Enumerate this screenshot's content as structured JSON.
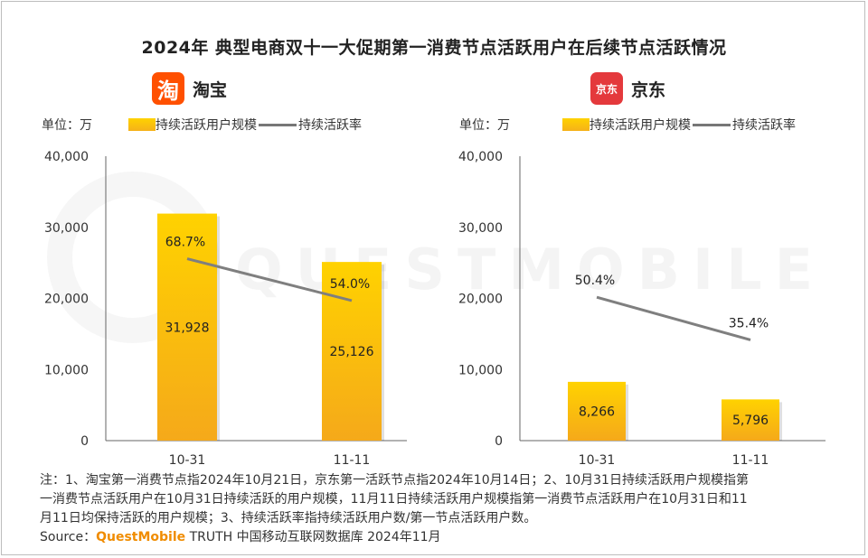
{
  "title": "2024年 典型电商双十一大促期第一消费节点活跃用户在后续节点活跃情况",
  "colors": {
    "bar_top": "#FFD200",
    "bar_bottom": "#F5A91A",
    "line": "#7F7F7F",
    "taobao": "#FF5000",
    "jd": "#E4393C",
    "source_brand": "#F08C00"
  },
  "watermark": "QUESTMOBILE",
  "panels": [
    {
      "brand": "淘宝",
      "logo_glyph": "淘",
      "logo_icon": "taobao-logo-icon",
      "unit": "单位：万",
      "legend_bar": "持续活跃用户规模",
      "legend_line": "持续活跃率"
    },
    {
      "brand": "京东",
      "logo_glyph": "京东",
      "logo_icon": "jd-logo-icon",
      "unit": "单位：万",
      "legend_bar": "持续活跃用户规模",
      "legend_line": "持续活跃率"
    }
  ],
  "chart_data": [
    {
      "type": "bar",
      "title": "淘宝",
      "categories": [
        "10-31",
        "11-11"
      ],
      "series": [
        {
          "name": "持续活跃用户规模",
          "type": "bar",
          "values": [
            31928,
            25126
          ],
          "labels": [
            "31,928",
            "25,126"
          ]
        },
        {
          "name": "持续活跃率",
          "type": "line",
          "values": [
            68.7,
            54.0
          ],
          "labels": [
            "68.7%",
            "54.0%"
          ]
        }
      ],
      "yticks": [
        "40,000",
        "30,000",
        "20,000",
        "10,000",
        "0"
      ],
      "ylim": [
        0,
        40000
      ],
      "y2lim": [
        0,
        100
      ],
      "grid": false
    },
    {
      "type": "bar",
      "title": "京东",
      "categories": [
        "10-31",
        "11-11"
      ],
      "series": [
        {
          "name": "持续活跃用户规模",
          "type": "bar",
          "values": [
            8266,
            5796
          ],
          "labels": [
            "8,266",
            "5,796"
          ]
        },
        {
          "name": "持续活跃率",
          "type": "line",
          "values": [
            50.4,
            35.4
          ],
          "labels": [
            "50.4%",
            "35.4%"
          ]
        }
      ],
      "yticks": [
        "40,000",
        "30,000",
        "20,000",
        "10,000",
        "0"
      ],
      "ylim": [
        0,
        40000
      ],
      "y2lim": [
        0,
        100
      ],
      "grid": false
    }
  ],
  "notes": [
    "注：1、淘宝第一消费节点指2024年10月21日，京东第一活跃节点指2024年10月14日；2、10月31日持续活跃用户规模指第",
    "一消费节点活跃用户在10月31日持续活跃的用户规模，11月11日持续活跃用户规模指第一消费节点活跃用户在10月31日和11",
    "月11日均保持活跃的用户规模；3、持续活跃率指持续活跃用户数/第一节点活跃用户数。"
  ],
  "source": {
    "prefix": "Source：",
    "brand": "QuestMobile",
    "rest": " TRUTH 中国移动互联网数据库 2024年11月"
  }
}
